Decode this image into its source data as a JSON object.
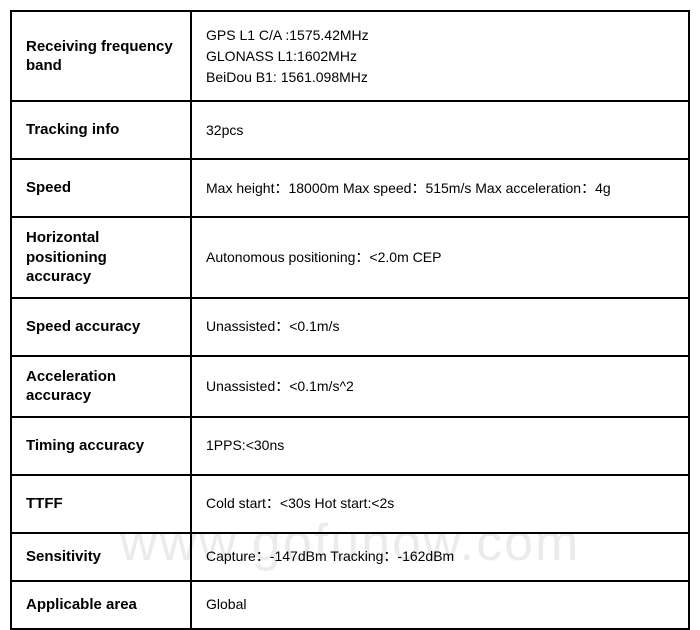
{
  "table": {
    "border_color": "#000000",
    "background_color": "#ffffff",
    "label_font_weight": "bold",
    "label_fontsize": 15,
    "value_fontsize": 14,
    "rows": [
      {
        "label": "Receiving frequency band",
        "value": "GPS L1 C/A :1575.42MHz\nGLONASS L1:1602MHz\nBeiDou B1: 1561.098MHz"
      },
      {
        "label": "Tracking info",
        "value": "32pcs"
      },
      {
        "label": "Speed",
        "value": "Max height：18000m  Max speed：515m/s Max acceleration：4g"
      },
      {
        "label": "Horizontal positioning accuracy",
        "value": "Autonomous positioning：<2.0m CEP"
      },
      {
        "label": "Speed accuracy",
        "value": "Unassisted：<0.1m/s"
      },
      {
        "label": "Acceleration accuracy",
        "value": "Unassisted：<0.1m/s^2"
      },
      {
        "label": "Timing accuracy",
        "value": "1PPS:<30ns"
      },
      {
        "label": "TTFF",
        "value": "Cold start：<30s Hot start:<2s"
      },
      {
        "label": "Sensitivity",
        "value": "Capture：-147dBm Tracking：-162dBm"
      },
      {
        "label": "Applicable area",
        "value": "Global"
      }
    ]
  },
  "watermark": {
    "text": "www.gofunow.com",
    "color": "rgba(0,0,0,0.08)",
    "fontsize": 52
  }
}
